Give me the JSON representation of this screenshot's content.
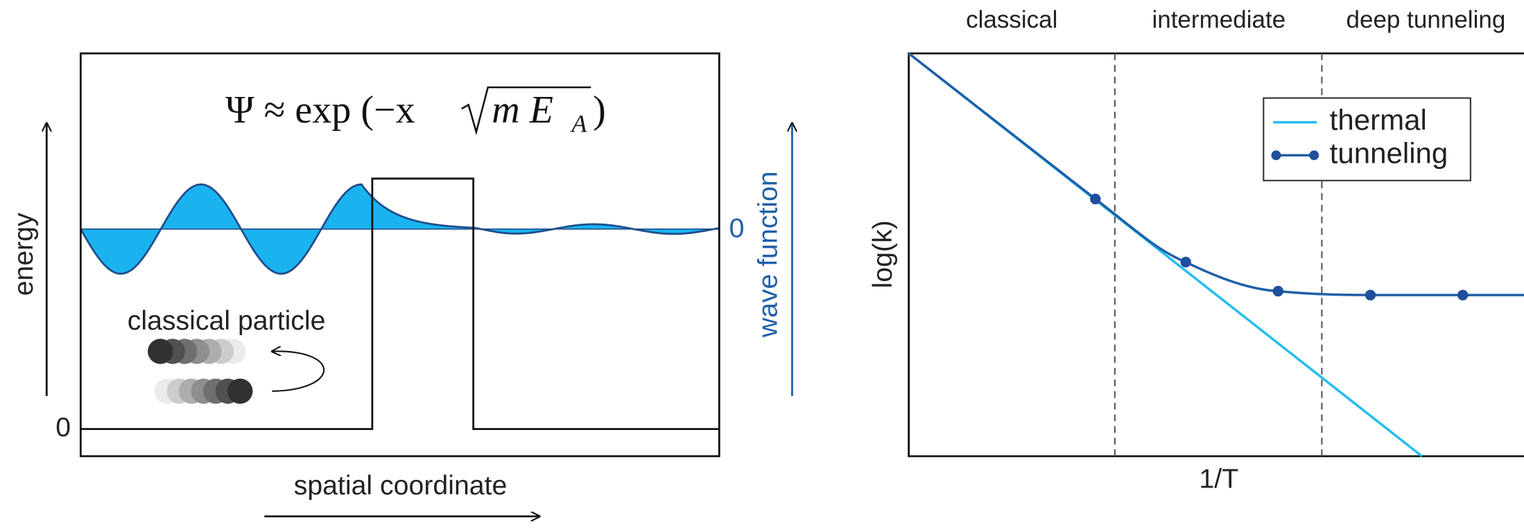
{
  "left_panel": {
    "formula": {
      "prefix": "Ψ ≈ exp (−x",
      "radicand": "m E",
      "subscript": "A",
      "suffix": ")"
    },
    "y_axis_label": "energy",
    "zero_label": "0",
    "x_axis_label": "spatial coordinate",
    "particle_label": "classical particle",
    "wave_zero_label": "0",
    "wave_axis_label": "wave function"
  },
  "right_panel": {
    "regions": [
      "classical",
      "intermediate",
      "deep tunneling"
    ],
    "y_axis_label": "log(k)",
    "x_axis_label": "1/T",
    "legend": [
      "thermal",
      "tunneling"
    ]
  }
}
